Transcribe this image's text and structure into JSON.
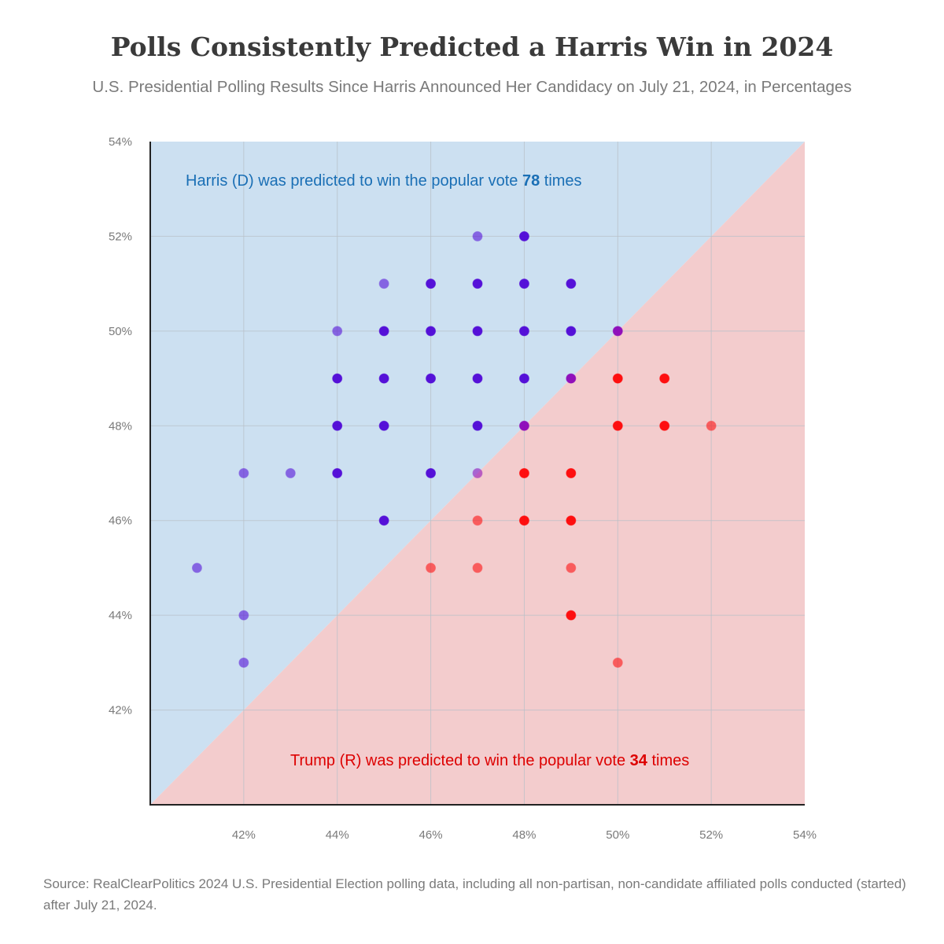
{
  "title": "Polls Consistently Predicted a Harris Win in 2024",
  "subtitle": "U.S. Presidential Polling Results Since Harris Announced Her Candidacy on July 21, 2024, in Percentages",
  "source": "Source: RealClearPolitics 2024 U.S. Presidential Election polling data, including all non-partisan, non-candidate affiliated polls conducted (started) after July 21, 2024.",
  "colors": {
    "harris_region": "#cce0f1",
    "trump_region": "#f3cccd",
    "harris_point": "#4b00d6",
    "trump_point": "#ff0000",
    "tie_point": "#8a00b8",
    "harris_text": "#1a6fb5",
    "trump_text": "#dd0000",
    "grid": "#b9c0c8",
    "axis": "#222222",
    "tick_text": "#7a7a7a"
  },
  "chart_data": {
    "type": "scatter",
    "xlim": [
      40,
      54
    ],
    "ylim": [
      40,
      54
    ],
    "x_ticks": [
      42,
      44,
      46,
      48,
      50,
      52,
      54
    ],
    "y_ticks": [
      42,
      44,
      46,
      48,
      50,
      52,
      54
    ],
    "x_tick_labels": [
      "42%",
      "44%",
      "46%",
      "48%",
      "50%",
      "52%",
      "54%"
    ],
    "y_tick_labels": [
      "42%",
      "44%",
      "46%",
      "48%",
      "50%",
      "52%",
      "54%"
    ],
    "grid": true,
    "annotations": {
      "harris": {
        "prefix": "Harris (D) was predicted to win the popular vote ",
        "count": "78",
        "suffix": " times"
      },
      "trump": {
        "prefix": "Trump (R) was predicted to win the popular vote ",
        "count": "34",
        "suffix": " times"
      }
    },
    "points": [
      {
        "x": 41,
        "y": 45,
        "side": "harris",
        "faint": true
      },
      {
        "x": 42,
        "y": 47,
        "side": "harris",
        "faint": true
      },
      {
        "x": 42,
        "y": 44,
        "side": "harris",
        "faint": true
      },
      {
        "x": 42,
        "y": 43,
        "side": "harris",
        "faint": true
      },
      {
        "x": 43,
        "y": 47,
        "side": "harris",
        "faint": true
      },
      {
        "x": 44,
        "y": 50,
        "side": "harris",
        "faint": true
      },
      {
        "x": 44,
        "y": 49,
        "side": "harris",
        "faint": false
      },
      {
        "x": 44,
        "y": 48,
        "side": "harris",
        "faint": false
      },
      {
        "x": 44,
        "y": 47,
        "side": "harris",
        "faint": false
      },
      {
        "x": 45,
        "y": 51,
        "side": "harris",
        "faint": true
      },
      {
        "x": 45,
        "y": 50,
        "side": "harris",
        "faint": false
      },
      {
        "x": 45,
        "y": 49,
        "side": "harris",
        "faint": false
      },
      {
        "x": 45,
        "y": 48,
        "side": "harris",
        "faint": false
      },
      {
        "x": 45,
        "y": 46,
        "side": "harris",
        "faint": false
      },
      {
        "x": 46,
        "y": 51,
        "side": "harris",
        "faint": false
      },
      {
        "x": 46,
        "y": 50,
        "side": "harris",
        "faint": false
      },
      {
        "x": 46,
        "y": 49,
        "side": "harris",
        "faint": false
      },
      {
        "x": 46,
        "y": 47,
        "side": "harris",
        "faint": false
      },
      {
        "x": 47,
        "y": 52,
        "side": "harris",
        "faint": true
      },
      {
        "x": 47,
        "y": 51,
        "side": "harris",
        "faint": false
      },
      {
        "x": 47,
        "y": 50,
        "side": "harris",
        "faint": false
      },
      {
        "x": 47,
        "y": 49,
        "side": "harris",
        "faint": false
      },
      {
        "x": 47,
        "y": 48,
        "side": "harris",
        "faint": false
      },
      {
        "x": 48,
        "y": 52,
        "side": "harris",
        "faint": false
      },
      {
        "x": 48,
        "y": 51,
        "side": "harris",
        "faint": false
      },
      {
        "x": 48,
        "y": 50,
        "side": "harris",
        "faint": false
      },
      {
        "x": 48,
        "y": 49,
        "side": "harris",
        "faint": false
      },
      {
        "x": 49,
        "y": 51,
        "side": "harris",
        "faint": false
      },
      {
        "x": 49,
        "y": 50,
        "side": "harris",
        "faint": false
      },
      {
        "x": 47,
        "y": 47,
        "side": "tie",
        "faint": true
      },
      {
        "x": 48,
        "y": 48,
        "side": "tie",
        "faint": false
      },
      {
        "x": 49,
        "y": 49,
        "side": "tie",
        "faint": false
      },
      {
        "x": 50,
        "y": 50,
        "side": "tie",
        "faint": false
      },
      {
        "x": 46,
        "y": 45,
        "side": "trump",
        "faint": true
      },
      {
        "x": 47,
        "y": 46,
        "side": "trump",
        "faint": true
      },
      {
        "x": 47,
        "y": 45,
        "side": "trump",
        "faint": true
      },
      {
        "x": 48,
        "y": 47,
        "side": "trump",
        "faint": false
      },
      {
        "x": 48,
        "y": 46,
        "side": "trump",
        "faint": false
      },
      {
        "x": 49,
        "y": 47,
        "side": "trump",
        "faint": false
      },
      {
        "x": 49,
        "y": 46,
        "side": "trump",
        "faint": false
      },
      {
        "x": 49,
        "y": 45,
        "side": "trump",
        "faint": true
      },
      {
        "x": 49,
        "y": 44,
        "side": "trump",
        "faint": false
      },
      {
        "x": 50,
        "y": 49,
        "side": "trump",
        "faint": false
      },
      {
        "x": 50,
        "y": 48,
        "side": "trump",
        "faint": false
      },
      {
        "x": 50,
        "y": 43,
        "side": "trump",
        "faint": true
      },
      {
        "x": 51,
        "y": 49,
        "side": "trump",
        "faint": false
      },
      {
        "x": 51,
        "y": 48,
        "side": "trump",
        "faint": false
      },
      {
        "x": 52,
        "y": 48,
        "side": "trump",
        "faint": true
      }
    ]
  }
}
